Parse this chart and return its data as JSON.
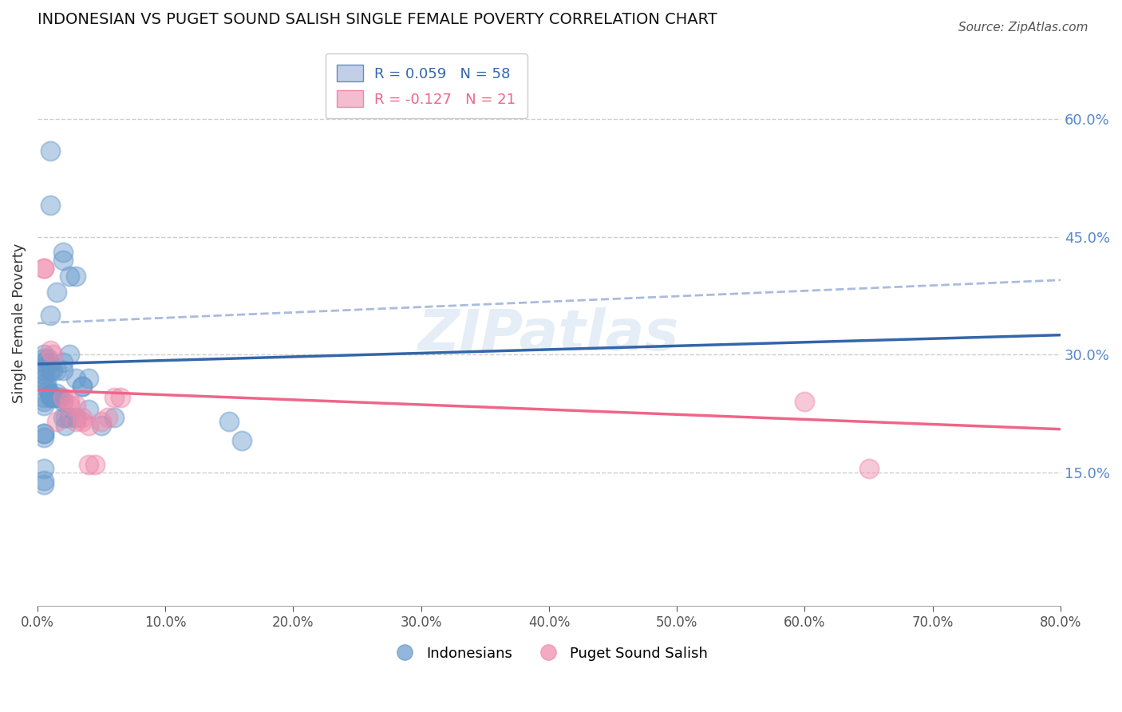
{
  "title": "INDONESIAN VS PUGET SOUND SALISH SINGLE FEMALE POVERTY CORRELATION CHART",
  "source": "Source: ZipAtlas.com",
  "ylabel": "Single Female Poverty",
  "xlabel": "",
  "xlim": [
    0.0,
    0.8
  ],
  "ylim": [
    -0.02,
    0.7
  ],
  "yticks": [
    0.15,
    0.3,
    0.45,
    0.6
  ],
  "xticks": [
    0.0,
    0.1,
    0.2,
    0.3,
    0.4,
    0.5,
    0.6,
    0.7,
    0.8
  ],
  "gridline_color": "#cccccc",
  "background": "#ffffff",
  "blue_color": "#6699cc",
  "pink_color": "#ee88aa",
  "blue_R": 0.059,
  "blue_N": 58,
  "pink_R": -0.127,
  "pink_N": 21,
  "indonesians_x": [
    0.01,
    0.01,
    0.02,
    0.015,
    0.02,
    0.025,
    0.03,
    0.01,
    0.005,
    0.005,
    0.005,
    0.005,
    0.008,
    0.01,
    0.01,
    0.012,
    0.015,
    0.02,
    0.025,
    0.02,
    0.03,
    0.035,
    0.04,
    0.035,
    0.005,
    0.005,
    0.005,
    0.007,
    0.007,
    0.008,
    0.01,
    0.01,
    0.01,
    0.012,
    0.013,
    0.015,
    0.016,
    0.018,
    0.02,
    0.02,
    0.022,
    0.022,
    0.025,
    0.03,
    0.04,
    0.05,
    0.06,
    0.15,
    0.16,
    0.005,
    0.005,
    0.005,
    0.005,
    0.005,
    0.005,
    0.005,
    0.005,
    0.005
  ],
  "indonesians_y": [
    0.56,
    0.49,
    0.43,
    0.38,
    0.42,
    0.4,
    0.4,
    0.35,
    0.3,
    0.295,
    0.29,
    0.285,
    0.295,
    0.29,
    0.28,
    0.28,
    0.28,
    0.28,
    0.3,
    0.29,
    0.27,
    0.26,
    0.27,
    0.26,
    0.28,
    0.275,
    0.27,
    0.265,
    0.26,
    0.255,
    0.25,
    0.248,
    0.245,
    0.245,
    0.245,
    0.25,
    0.245,
    0.245,
    0.22,
    0.24,
    0.22,
    0.21,
    0.22,
    0.22,
    0.23,
    0.21,
    0.22,
    0.215,
    0.19,
    0.245,
    0.24,
    0.235,
    0.2,
    0.2,
    0.195,
    0.155,
    0.14,
    0.135
  ],
  "salish_x": [
    0.005,
    0.005,
    0.01,
    0.012,
    0.015,
    0.02,
    0.025,
    0.025,
    0.03,
    0.03,
    0.035,
    0.035,
    0.04,
    0.04,
    0.045,
    0.05,
    0.055,
    0.06,
    0.065,
    0.6,
    0.65
  ],
  "salish_y": [
    0.41,
    0.41,
    0.305,
    0.3,
    0.215,
    0.245,
    0.24,
    0.235,
    0.235,
    0.215,
    0.22,
    0.215,
    0.21,
    0.16,
    0.16,
    0.215,
    0.22,
    0.245,
    0.245,
    0.24,
    0.155
  ]
}
